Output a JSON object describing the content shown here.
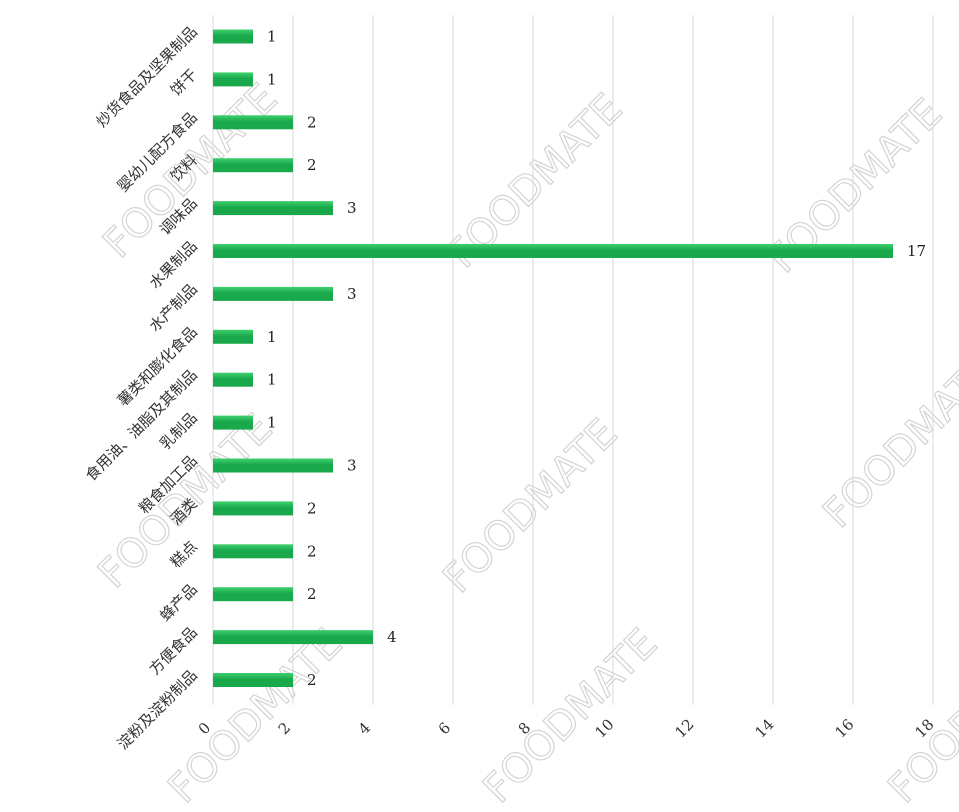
{
  "colors": {
    "bar": "#1aa84c",
    "bar_highlight": "#3fd06e",
    "grid": "#d9d9d9"
  },
  "watermark_text": "FOODMATE",
  "chart_data": {
    "type": "bar",
    "orientation": "horizontal",
    "categories": [
      "炒货食品及坚果制品",
      "饼干",
      "婴幼儿配方食品",
      "饮料",
      "调味品",
      "水果制品",
      "水产制品",
      "薯类和膨化食品",
      "食用油、油脂及其制品",
      "乳制品",
      "粮食加工品",
      "酒类",
      "糕点",
      "蜂产品",
      "方便食品",
      "淀粉及淀粉制品"
    ],
    "values": [
      1,
      1,
      2,
      2,
      3,
      17,
      3,
      1,
      1,
      1,
      3,
      2,
      2,
      2,
      4,
      2
    ],
    "xticks": [
      "0",
      "2",
      "4",
      "6",
      "8",
      "10",
      "12",
      "14",
      "16",
      "18"
    ],
    "xlim": [
      0,
      18
    ],
    "grid": true,
    "legend": "none"
  }
}
